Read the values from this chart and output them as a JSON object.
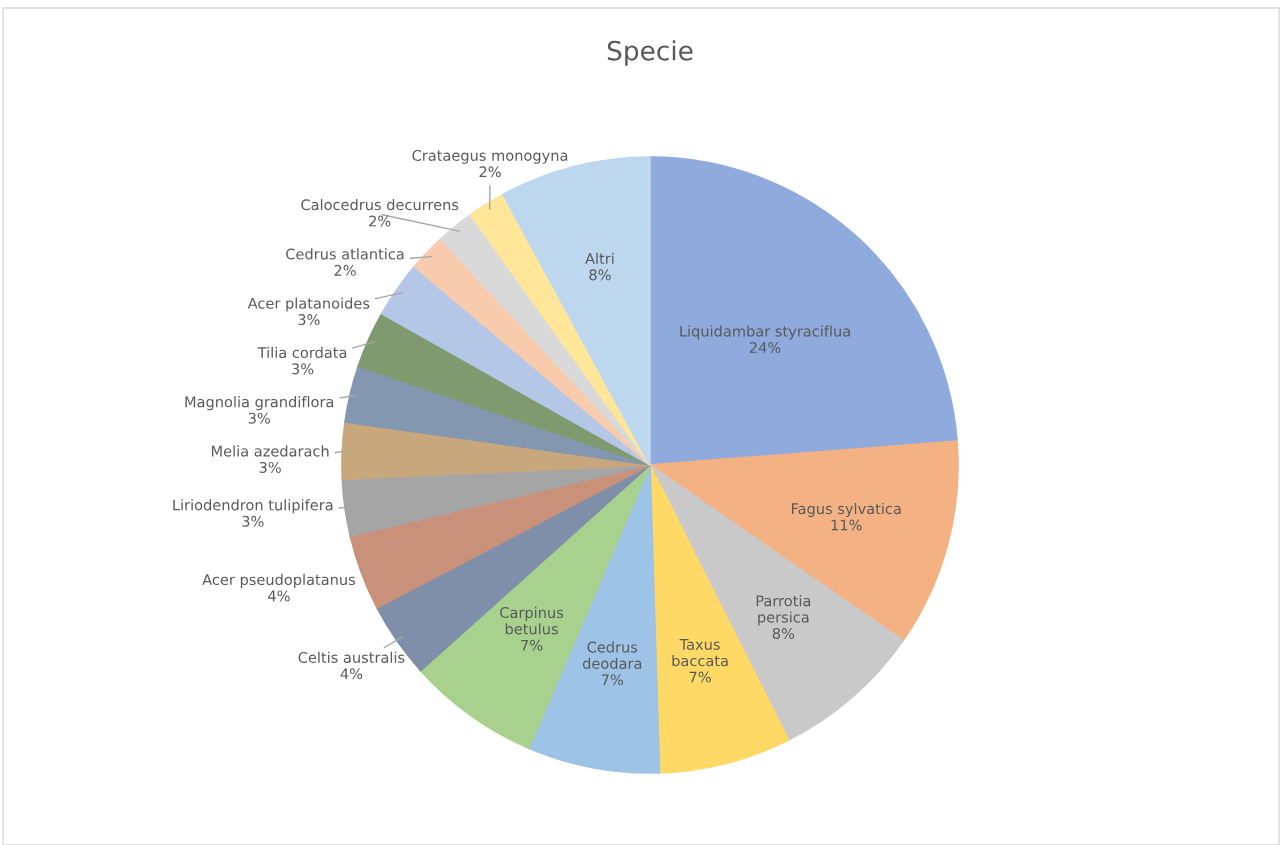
{
  "chart_data": {
    "type": "pie",
    "title": "Specie",
    "categories": [
      "Liquidambar styraciflua",
      "Fagus sylvatica",
      "Parrotia persica",
      "Taxus baccata",
      "Cedrus deodara",
      "Carpinus betulus",
      "Celtis australis",
      "Acer pseudoplatanus",
      "Liriodendron tulipifera",
      "Melia azedarach",
      "Magnolia grandiflora",
      "Tilia cordata",
      "Acer platanoides",
      "Cedrus atlantica",
      "Calocedrus decurrens",
      "Crataegus monogyna",
      "Altri"
    ],
    "values": [
      24,
      11,
      8,
      7,
      7,
      7,
      4,
      4,
      3,
      3,
      3,
      3,
      3,
      2,
      2,
      2,
      8
    ],
    "value_labels": [
      "24%",
      "11%",
      "8%",
      "7%",
      "7%",
      "7%",
      "4%",
      "4%",
      "3%",
      "3%",
      "3%",
      "3%",
      "3%",
      "2%",
      "2%",
      "2%",
      "8%"
    ],
    "colors": [
      "#8faadc",
      "#f4b183",
      "#c9c9c9",
      "#ffd966",
      "#9dc3e6",
      "#a9d18e",
      "#7f8fa9",
      "#c9907a",
      "#a5a5a5",
      "#c9a77c",
      "#8497b0",
      "#7f9a6f",
      "#b4c7e7",
      "#f8cbad",
      "#d9d9d9",
      "#ffe699",
      "#bdd7ee"
    ]
  }
}
